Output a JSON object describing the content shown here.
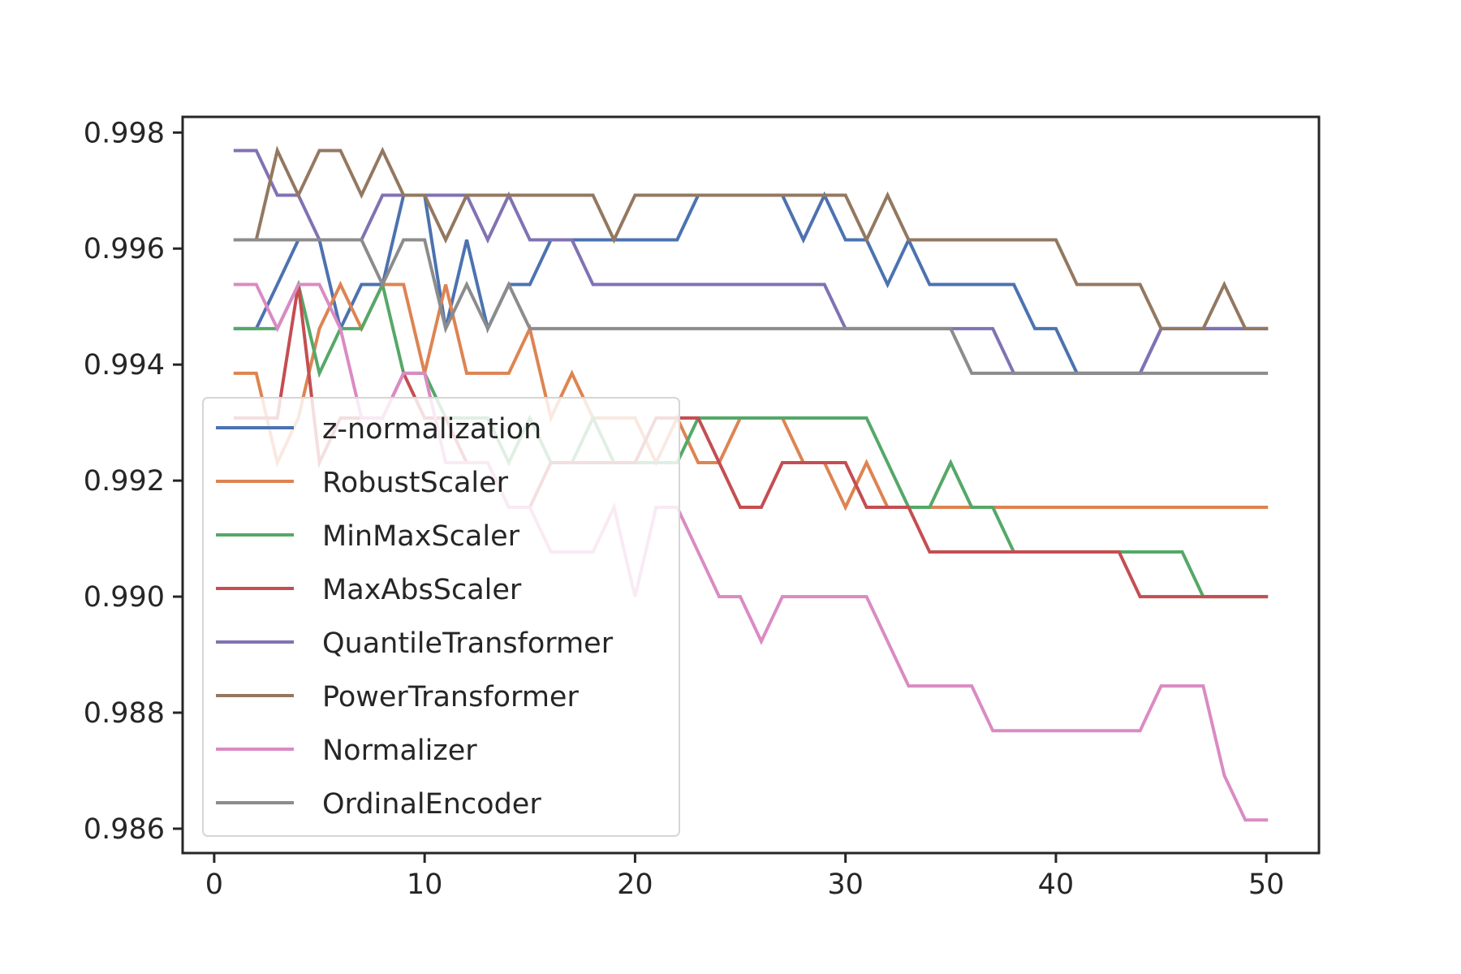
{
  "chart_data": {
    "type": "line",
    "title": "",
    "xlabel": "",
    "ylabel": "",
    "xlim": [
      -1.5,
      52.5
    ],
    "ylim": [
      0.98558,
      0.99827
    ],
    "xticks": [
      0,
      10,
      20,
      30,
      40,
      50
    ],
    "xtick_labels": [
      "0",
      "10",
      "20",
      "30",
      "40",
      "50"
    ],
    "yticks": [
      0.986,
      0.988,
      0.99,
      0.992,
      0.994,
      0.996,
      0.998
    ],
    "ytick_labels": [
      "0.986",
      "0.988",
      "0.990",
      "0.992",
      "0.994",
      "0.996",
      "0.998"
    ],
    "grid": false,
    "legend_position": "lower-left",
    "x": [
      1,
      2,
      3,
      4,
      5,
      6,
      7,
      8,
      9,
      10,
      11,
      12,
      13,
      14,
      15,
      16,
      17,
      18,
      19,
      20,
      21,
      22,
      23,
      24,
      25,
      26,
      27,
      28,
      29,
      30,
      31,
      32,
      33,
      34,
      35,
      36,
      37,
      38,
      39,
      40,
      41,
      42,
      43,
      44,
      45,
      46,
      47,
      48,
      49,
      50
    ],
    "series": [
      {
        "name": "z-normalization",
        "color": "#4c72b0",
        "values": [
          0.99462,
          0.99462,
          0.99538,
          0.99615,
          0.99615,
          0.99462,
          0.99538,
          0.99538,
          0.99692,
          0.99692,
          0.99462,
          0.99615,
          0.99462,
          0.99538,
          0.99538,
          0.99615,
          0.99615,
          0.99615,
          0.99615,
          0.99615,
          0.99615,
          0.99615,
          0.99692,
          0.99692,
          0.99692,
          0.99692,
          0.99692,
          0.99615,
          0.99692,
          0.99615,
          0.99615,
          0.99538,
          0.99615,
          0.99538,
          0.99538,
          0.99538,
          0.99538,
          0.99538,
          0.99462,
          0.99462,
          0.99385,
          0.99385,
          0.99385,
          0.99385,
          0.99462,
          0.99462,
          0.99462,
          0.99462,
          0.99462,
          0.99462
        ]
      },
      {
        "name": "RobustScaler",
        "color": "#dd8452",
        "values": [
          0.99385,
          0.99385,
          0.99231,
          0.99308,
          0.99462,
          0.99538,
          0.99462,
          0.99538,
          0.99538,
          0.99385,
          0.99538,
          0.99385,
          0.99385,
          0.99385,
          0.99462,
          0.99308,
          0.99385,
          0.99308,
          0.99308,
          0.99308,
          0.99231,
          0.99308,
          0.99231,
          0.99231,
          0.99308,
          0.99308,
          0.99308,
          0.99231,
          0.99231,
          0.99154,
          0.99231,
          0.99154,
          0.99154,
          0.99154,
          0.99154,
          0.99154,
          0.99154,
          0.99154,
          0.99154,
          0.99154,
          0.99154,
          0.99154,
          0.99154,
          0.99154,
          0.99154,
          0.99154,
          0.99154,
          0.99154,
          0.99154,
          0.99154
        ]
      },
      {
        "name": "MinMaxScaler",
        "color": "#55a868",
        "values": [
          0.99462,
          0.99462,
          0.99462,
          0.99538,
          0.99385,
          0.99462,
          0.99462,
          0.99538,
          0.99385,
          0.99385,
          0.99308,
          0.99308,
          0.99308,
          0.99231,
          0.99308,
          0.99231,
          0.99231,
          0.99308,
          0.99231,
          0.99231,
          0.99231,
          0.99231,
          0.99308,
          0.99308,
          0.99308,
          0.99308,
          0.99308,
          0.99308,
          0.99308,
          0.99308,
          0.99308,
          0.99231,
          0.99154,
          0.99154,
          0.99231,
          0.99154,
          0.99154,
          0.99077,
          0.99077,
          0.99077,
          0.99077,
          0.99077,
          0.99077,
          0.99077,
          0.99077,
          0.99077,
          0.99,
          0.99,
          0.99,
          0.99
        ]
      },
      {
        "name": "MaxAbsScaler",
        "color": "#c44e52",
        "values": [
          0.99308,
          0.99308,
          0.99308,
          0.99538,
          0.99231,
          0.99308,
          0.99308,
          0.99308,
          0.99385,
          0.99308,
          0.99308,
          0.99231,
          0.99231,
          0.99154,
          0.99154,
          0.99231,
          0.99231,
          0.99231,
          0.99231,
          0.99231,
          0.99308,
          0.99308,
          0.99308,
          0.99231,
          0.99154,
          0.99154,
          0.99231,
          0.99231,
          0.99231,
          0.99231,
          0.99154,
          0.99154,
          0.99154,
          0.99077,
          0.99077,
          0.99077,
          0.99077,
          0.99077,
          0.99077,
          0.99077,
          0.99077,
          0.99077,
          0.99077,
          0.99,
          0.99,
          0.99,
          0.99,
          0.99,
          0.99,
          0.99
        ]
      },
      {
        "name": "QuantileTransformer",
        "color": "#8172b3",
        "values": [
          0.99769,
          0.99769,
          0.99692,
          0.99692,
          0.99615,
          0.99615,
          0.99615,
          0.99692,
          0.99692,
          0.99692,
          0.99692,
          0.99692,
          0.99615,
          0.99692,
          0.99615,
          0.99615,
          0.99615,
          0.99538,
          0.99538,
          0.99538,
          0.99538,
          0.99538,
          0.99538,
          0.99538,
          0.99538,
          0.99538,
          0.99538,
          0.99538,
          0.99538,
          0.99462,
          0.99462,
          0.99462,
          0.99462,
          0.99462,
          0.99462,
          0.99462,
          0.99462,
          0.99385,
          0.99385,
          0.99385,
          0.99385,
          0.99385,
          0.99385,
          0.99385,
          0.99462,
          0.99462,
          0.99462,
          0.99462,
          0.99462,
          0.99462
        ]
      },
      {
        "name": "PowerTransformer",
        "color": "#937860",
        "values": [
          0.99615,
          0.99615,
          0.99769,
          0.99692,
          0.99769,
          0.99769,
          0.99692,
          0.99769,
          0.99692,
          0.99692,
          0.99615,
          0.99692,
          0.99692,
          0.99692,
          0.99692,
          0.99692,
          0.99692,
          0.99692,
          0.99615,
          0.99692,
          0.99692,
          0.99692,
          0.99692,
          0.99692,
          0.99692,
          0.99692,
          0.99692,
          0.99692,
          0.99692,
          0.99692,
          0.99615,
          0.99692,
          0.99615,
          0.99615,
          0.99615,
          0.99615,
          0.99615,
          0.99615,
          0.99615,
          0.99615,
          0.99538,
          0.99538,
          0.99538,
          0.99538,
          0.99462,
          0.99462,
          0.99462,
          0.99538,
          0.99462,
          0.99462
        ]
      },
      {
        "name": "Normalizer",
        "color": "#da8bc3",
        "values": [
          0.99538,
          0.99538,
          0.99462,
          0.99538,
          0.99538,
          0.99462,
          0.99308,
          0.99308,
          0.99385,
          0.99385,
          0.99231,
          0.99231,
          0.99231,
          0.99154,
          0.99154,
          0.99077,
          0.99077,
          0.99077,
          0.99154,
          0.99,
          0.99154,
          0.99154,
          0.99077,
          0.99,
          0.99,
          0.98923,
          0.99,
          0.99,
          0.99,
          0.99,
          0.99,
          0.98923,
          0.98846,
          0.98846,
          0.98846,
          0.98846,
          0.98769,
          0.98769,
          0.98769,
          0.98769,
          0.98769,
          0.98769,
          0.98769,
          0.98769,
          0.98846,
          0.98846,
          0.98846,
          0.98692,
          0.98615,
          0.98615
        ]
      },
      {
        "name": "OrdinalEncoder",
        "color": "#8c8c8c",
        "values": [
          0.99615,
          0.99615,
          0.99615,
          0.99615,
          0.99615,
          0.99615,
          0.99615,
          0.99538,
          0.99615,
          0.99615,
          0.99462,
          0.99538,
          0.99462,
          0.99538,
          0.99462,
          0.99462,
          0.99462,
          0.99462,
          0.99462,
          0.99462,
          0.99462,
          0.99462,
          0.99462,
          0.99462,
          0.99462,
          0.99462,
          0.99462,
          0.99462,
          0.99462,
          0.99462,
          0.99462,
          0.99462,
          0.99462,
          0.99462,
          0.99462,
          0.99385,
          0.99385,
          0.99385,
          0.99385,
          0.99385,
          0.99385,
          0.99385,
          0.99385,
          0.99385,
          0.99385,
          0.99385,
          0.99385,
          0.99385,
          0.99385,
          0.99385
        ]
      }
    ]
  }
}
